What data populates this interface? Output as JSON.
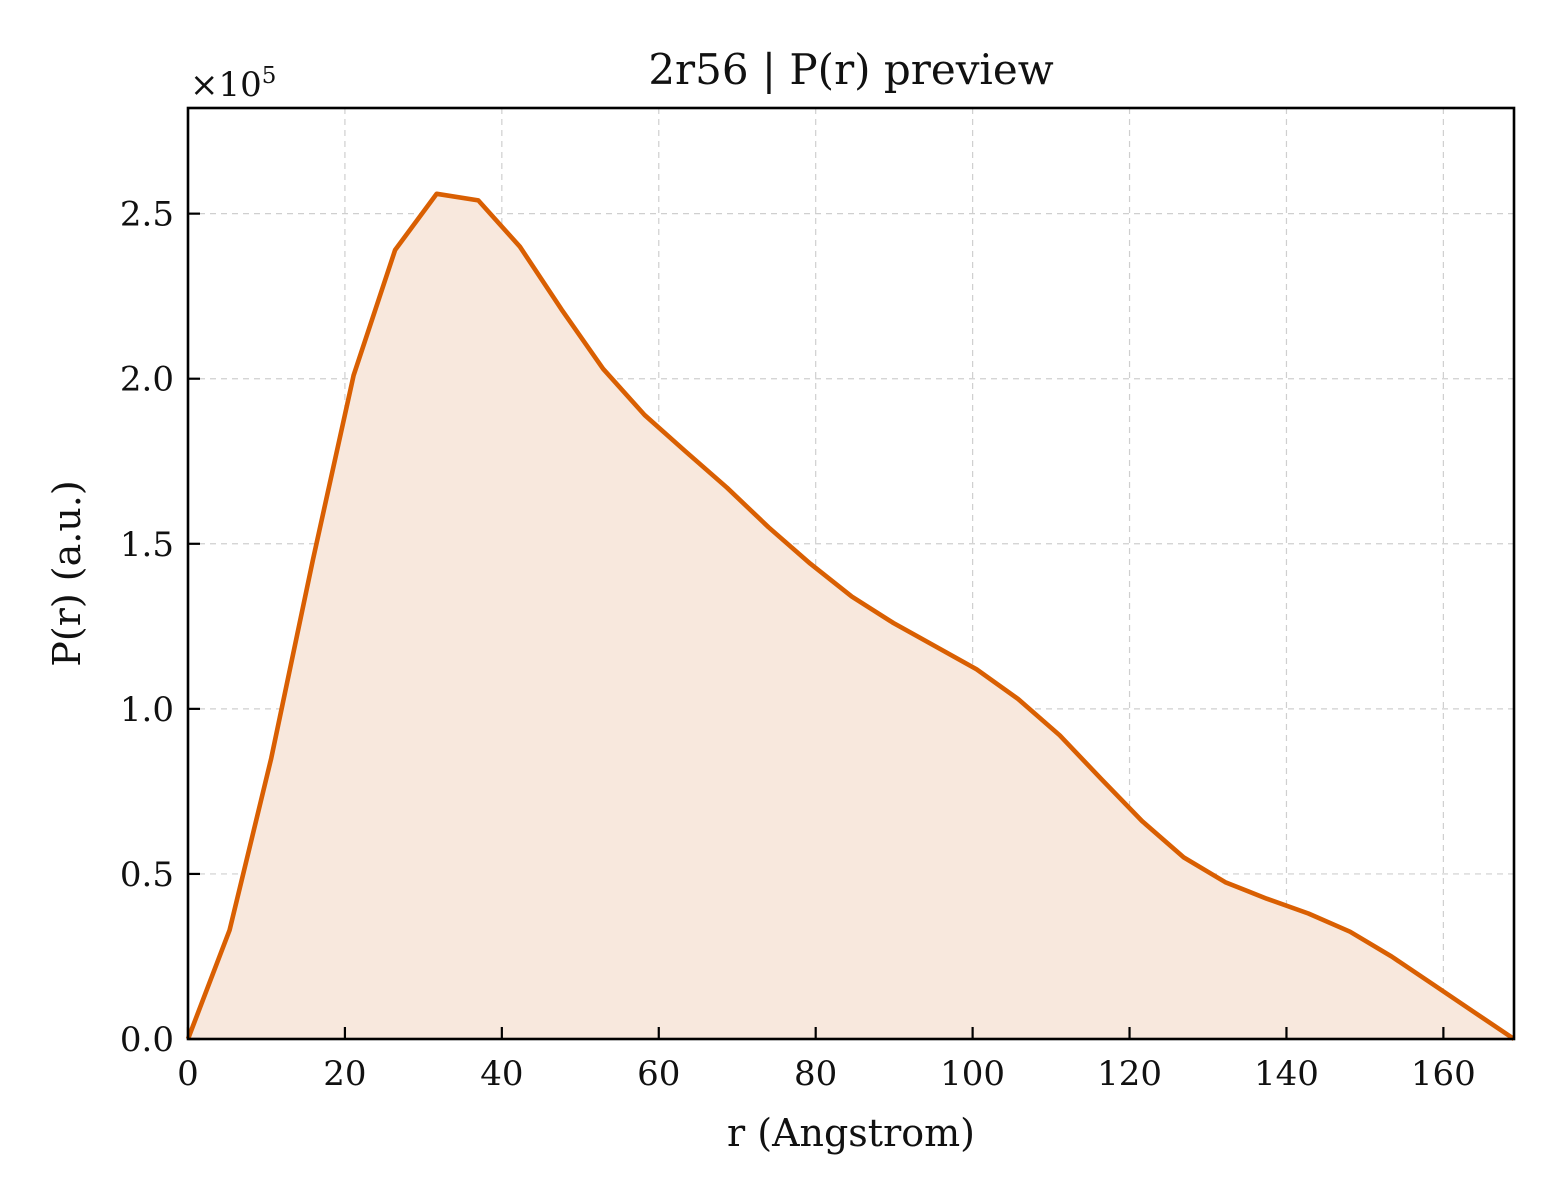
{
  "chart_data": {
    "type": "area",
    "title": "2r56 | P(r) preview",
    "xlabel": "r (Angstrom)",
    "ylabel": "P(r) (a.u.)",
    "y_multiplier": "×10",
    "y_multiplier_exp": "5",
    "xlim": [
      0,
      169
    ],
    "ylim": [
      0,
      2.82
    ],
    "grid": true,
    "x_ticks": [
      0,
      20,
      40,
      60,
      80,
      100,
      120,
      140,
      160
    ],
    "x_tick_labels": [
      "0",
      "20",
      "40",
      "60",
      "80",
      "100",
      "120",
      "140",
      "160"
    ],
    "y_ticks": [
      0,
      0.5,
      1.0,
      1.5,
      2.0,
      2.5
    ],
    "y_tick_labels": [
      "0.0",
      "0.5",
      "1.0",
      "1.5",
      "2.0",
      "2.5"
    ],
    "line_color": "#d95f02",
    "fill_color": "#f8e8dd",
    "series": [
      {
        "x": [
          0,
          5.3,
          10.6,
          15.9,
          21.1,
          26.4,
          31.7,
          37.0,
          42.3,
          47.6,
          52.9,
          58.2,
          63.4,
          68.7,
          74.0,
          79.3,
          84.6,
          89.9,
          95.2,
          100.5,
          105.8,
          111.1,
          116.3,
          121.6,
          126.9,
          132.2,
          137.5,
          142.8,
          148.1,
          153.4,
          158.7,
          164.0,
          169.0
        ],
        "y": [
          0.0,
          0.33,
          0.85,
          1.45,
          2.01,
          2.39,
          2.56,
          2.54,
          2.4,
          2.21,
          2.03,
          1.89,
          1.78,
          1.67,
          1.55,
          1.44,
          1.34,
          1.26,
          1.19,
          1.12,
          1.03,
          0.92,
          0.79,
          0.66,
          0.55,
          0.475,
          0.425,
          0.38,
          0.325,
          0.25,
          0.165,
          0.08,
          0.0
        ]
      }
    ]
  }
}
